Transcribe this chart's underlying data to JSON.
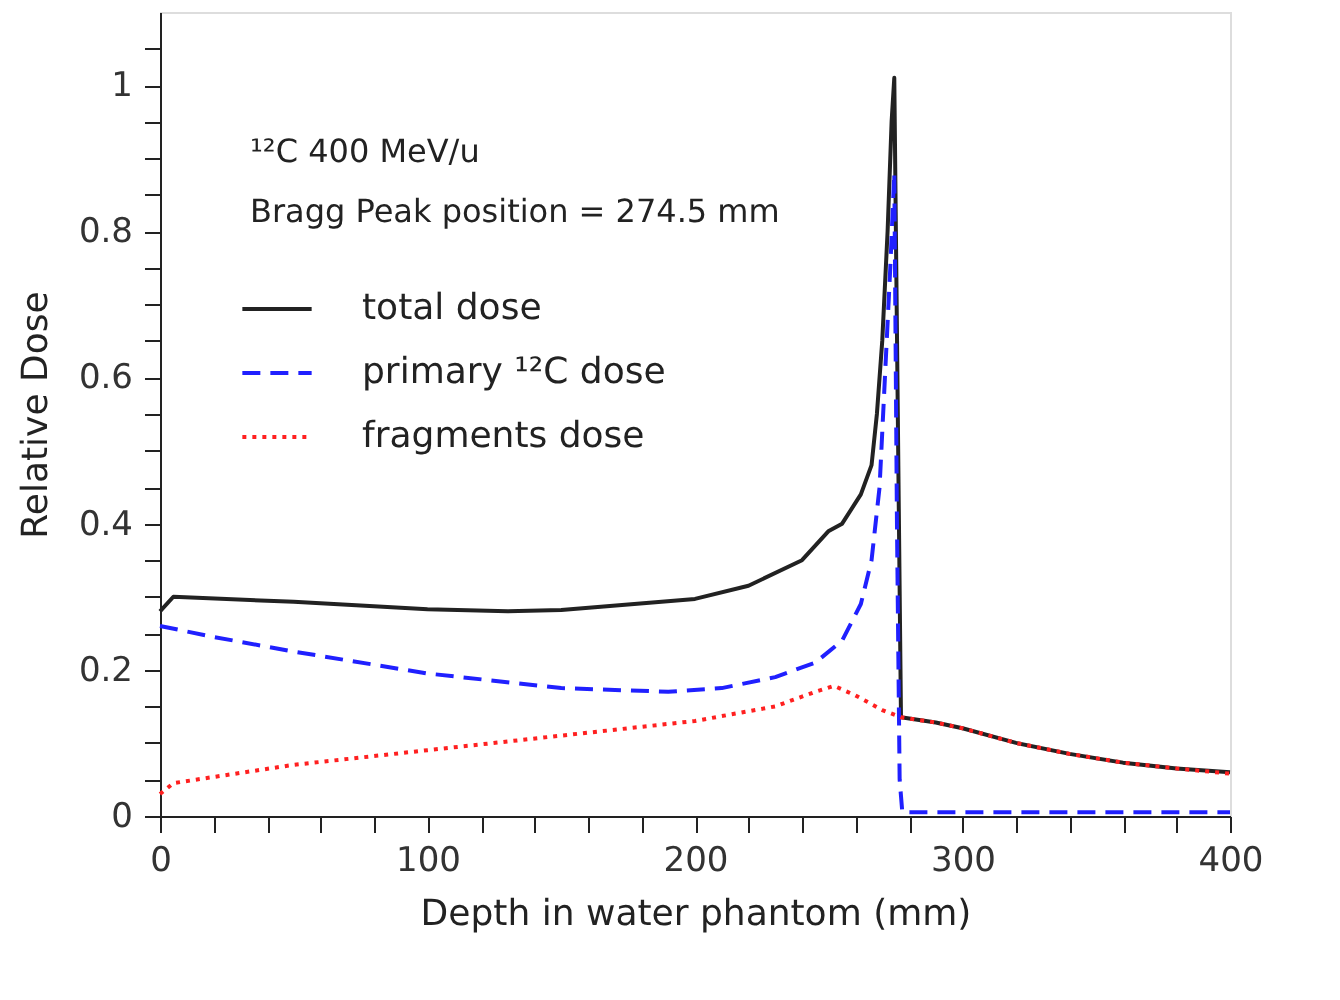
{
  "chart_data": {
    "type": "line",
    "xlabel": "Depth in water phantom (mm)",
    "ylabel": "Relative Dose",
    "annotations": [
      "¹²C 400 MeV/u",
      "Bragg Peak position = 274.5 mm"
    ],
    "xlim": [
      0,
      400
    ],
    "ylim": [
      0,
      1.1
    ],
    "xticks": [
      0,
      {
        "value": 20,
        "label": null
      },
      {
        "value": 40,
        "label": null
      },
      {
        "value": 60,
        "label": null
      },
      {
        "value": 80,
        "label": null
      },
      100,
      {
        "value": 120,
        "label": null
      },
      {
        "value": 140,
        "label": null
      },
      {
        "value": 160,
        "label": null
      },
      {
        "value": 180,
        "label": null
      },
      200,
      {
        "value": 220,
        "label": null
      },
      {
        "value": 240,
        "label": null
      },
      {
        "value": 260,
        "label": null
      },
      {
        "value": 280,
        "label": null
      },
      300,
      {
        "value": 320,
        "label": null
      },
      {
        "value": 340,
        "label": null
      },
      {
        "value": 360,
        "label": null
      },
      {
        "value": 380,
        "label": null
      },
      400
    ],
    "yticks": [
      0,
      {
        "value": 0.05,
        "label": null
      },
      {
        "value": 0.1,
        "label": null
      },
      {
        "value": 0.15,
        "label": null
      },
      0.2,
      {
        "value": 0.25,
        "label": null
      },
      {
        "value": 0.3,
        "label": null
      },
      {
        "value": 0.35,
        "label": null
      },
      0.4,
      {
        "value": 0.45,
        "label": null
      },
      {
        "value": 0.5,
        "label": null
      },
      {
        "value": 0.55,
        "label": null
      },
      0.6,
      {
        "value": 0.65,
        "label": null
      },
      {
        "value": 0.7,
        "label": null
      },
      {
        "value": 0.75,
        "label": null
      },
      0.8,
      {
        "value": 0.85,
        "label": null
      },
      {
        "value": 0.9,
        "label": null
      },
      {
        "value": 0.95,
        "label": null
      },
      1,
      {
        "value": 1.05,
        "label": null
      }
    ],
    "grid": false,
    "legend": "top left",
    "marker": "none",
    "series": [
      {
        "name": "total dose",
        "color": "#222222",
        "line_style": "solid",
        "x": [
          0,
          5,
          50,
          100,
          130,
          150,
          200,
          220,
          240,
          250,
          255,
          262,
          266,
          268,
          270,
          272,
          273.5,
          274.5,
          277,
          290,
          300,
          320,
          340,
          360,
          380,
          400
        ],
        "values": [
          0.28,
          0.3,
          0.293,
          0.283,
          0.28,
          0.282,
          0.297,
          0.315,
          0.35,
          0.39,
          0.4,
          0.44,
          0.48,
          0.55,
          0.65,
          0.8,
          0.95,
          1.01,
          0.135,
          0.128,
          0.12,
          0.1,
          0.085,
          0.073,
          0.065,
          0.06
        ]
      },
      {
        "name": "primary ¹²C dose",
        "color": "#2020ff",
        "line_style": "dashed",
        "x": [
          0,
          20,
          50,
          100,
          150,
          190,
          210,
          230,
          245,
          255,
          262,
          266,
          269,
          271,
          273,
          274.5,
          275.5,
          276.5,
          277.5,
          300,
          350,
          400
        ],
        "values": [
          0.26,
          0.245,
          0.225,
          0.195,
          0.175,
          0.17,
          0.175,
          0.19,
          0.21,
          0.24,
          0.29,
          0.35,
          0.45,
          0.6,
          0.75,
          0.88,
          0.4,
          0.05,
          0.005,
          0.005,
          0.005,
          0.005
        ]
      },
      {
        "name": "fragments dose",
        "color": "#ff2020",
        "line_style": "dotted",
        "x": [
          0,
          5,
          50,
          100,
          150,
          200,
          230,
          245,
          252,
          260,
          270,
          277,
          290,
          300,
          320,
          340,
          360,
          380,
          400
        ],
        "values": [
          0.03,
          0.045,
          0.07,
          0.09,
          0.11,
          0.13,
          0.15,
          0.17,
          0.178,
          0.165,
          0.145,
          0.135,
          0.128,
          0.12,
          0.1,
          0.085,
          0.073,
          0.065,
          0.058
        ]
      }
    ]
  }
}
